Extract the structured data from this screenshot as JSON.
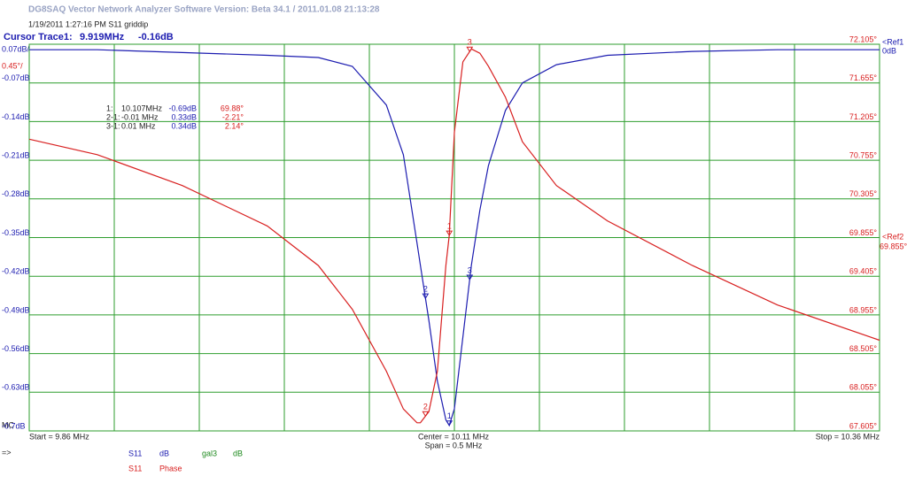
{
  "header": {
    "title": "DG8SAQ Vector Network Analyzer Software   Version:  Beta 34.1 / 2011.01.08 21:13:28",
    "subtitle": "1/19/2011   1:27:16 PM   S11 griddip",
    "cursor_label": "Cursor Trace1:",
    "cursor_freq": "9.919MHz",
    "cursor_value": "-0.16dB"
  },
  "chart_data": {
    "type": "line",
    "x": [
      9.86,
      9.9,
      9.95,
      10.0,
      10.03,
      10.05,
      10.07,
      10.08,
      10.088,
      10.09,
      10.095,
      10.1,
      10.105,
      10.107,
      10.11,
      10.115,
      10.12,
      10.125,
      10.13,
      10.14,
      10.15,
      10.17,
      10.2,
      10.25,
      10.3,
      10.36
    ],
    "series": [
      {
        "name": "S11",
        "unit": "dB",
        "color": "#1c1cb0",
        "values": [
          -0.01,
          -0.01,
          -0.015,
          -0.02,
          -0.024,
          -0.04,
          -0.11,
          -0.2,
          -0.36,
          -0.4,
          -0.5,
          -0.61,
          -0.68,
          -0.69,
          -0.66,
          -0.53,
          -0.4,
          -0.3,
          -0.22,
          -0.12,
          -0.07,
          -0.037,
          -0.02,
          -0.013,
          -0.01,
          -0.01
        ]
      },
      {
        "name": "S11",
        "unit": "Phase",
        "color": "#d82020",
        "axis": "y2",
        "values": [
          71.0,
          70.82,
          70.46,
          69.99,
          69.53,
          69.02,
          68.3,
          67.86,
          67.7,
          67.7,
          67.83,
          68.3,
          69.53,
          69.88,
          71.08,
          71.9,
          72.05,
          72.0,
          71.85,
          71.49,
          70.97,
          70.46,
          70.05,
          69.53,
          69.07,
          68.66
        ]
      }
    ],
    "extra_legend": {
      "name": "gal3",
      "unit": "dB",
      "color": "#1e8a1e"
    },
    "xlim": [
      9.86,
      10.36
    ],
    "xticks": [
      9.91,
      9.96,
      10.01,
      10.06,
      10.11,
      10.16,
      10.21,
      10.26,
      10.31
    ],
    "ylim": [
      -0.7,
      0
    ],
    "yticks": [
      {
        "value": -0.07,
        "label": "-0.07dB"
      },
      {
        "value": -0.14,
        "label": "-0.14dB"
      },
      {
        "value": -0.21,
        "label": "-0.21dB"
      },
      {
        "value": -0.28,
        "label": "-0.28dB"
      },
      {
        "value": -0.35,
        "label": "-0.35dB"
      },
      {
        "value": -0.42,
        "label": "-0.42dB"
      },
      {
        "value": -0.49,
        "label": "-0.49dB"
      },
      {
        "value": -0.56,
        "label": "-0.56dB"
      },
      {
        "value": -0.63,
        "label": "-0.63dB"
      },
      {
        "value": -0.7,
        "label": "-0.7dB"
      }
    ],
    "y2lim": [
      67.605,
      72.105
    ],
    "y2ticks": [
      {
        "value": 72.105,
        "label": "72.105°"
      },
      {
        "value": 71.655,
        "label": "71.655°"
      },
      {
        "value": 71.205,
        "label": "71.205°"
      },
      {
        "value": 70.755,
        "label": "70.755°"
      },
      {
        "value": 70.305,
        "label": "70.305°"
      },
      {
        "value": 69.855,
        "label": "69.855°"
      },
      {
        "value": 69.405,
        "label": "69.405°"
      },
      {
        "value": 68.955,
        "label": "68.955°"
      },
      {
        "value": 68.505,
        "label": "68.505°"
      },
      {
        "value": 68.055,
        "label": "68.055°"
      },
      {
        "value": 67.605,
        "label": "67.605°"
      }
    ],
    "grid": true,
    "grid_color": "#2e9e2e",
    "scale_label": "0.07dB/",
    "scale2_label": "0.45°/",
    "ref1": "<Ref1",
    "ref1_value": "0dB",
    "ref2": "<Ref2",
    "ref2_value": "69.855°",
    "markers": [
      {
        "label": "1",
        "x": 10.107
      },
      {
        "label": "2",
        "x": 10.093
      },
      {
        "label": "3",
        "x": 10.119
      }
    ],
    "marker_table": [
      [
        "1:",
        "10.107MHz",
        "-0.69dB",
        "69.88°"
      ],
      [
        "2-1:",
        "-0.01 MHz",
        "0.33dB",
        "-2.21°"
      ],
      [
        "3-1:",
        "0.01 MHz",
        "0.34dB",
        "2.14°"
      ]
    ],
    "start": "Start = 9.86 MHz",
    "center": "Center = 10.11 MHz",
    "span": "Span = 0.5 MHz",
    "stop": "Stop = 10.36 MHz",
    "mc": "MC",
    "arrow": "=>"
  }
}
